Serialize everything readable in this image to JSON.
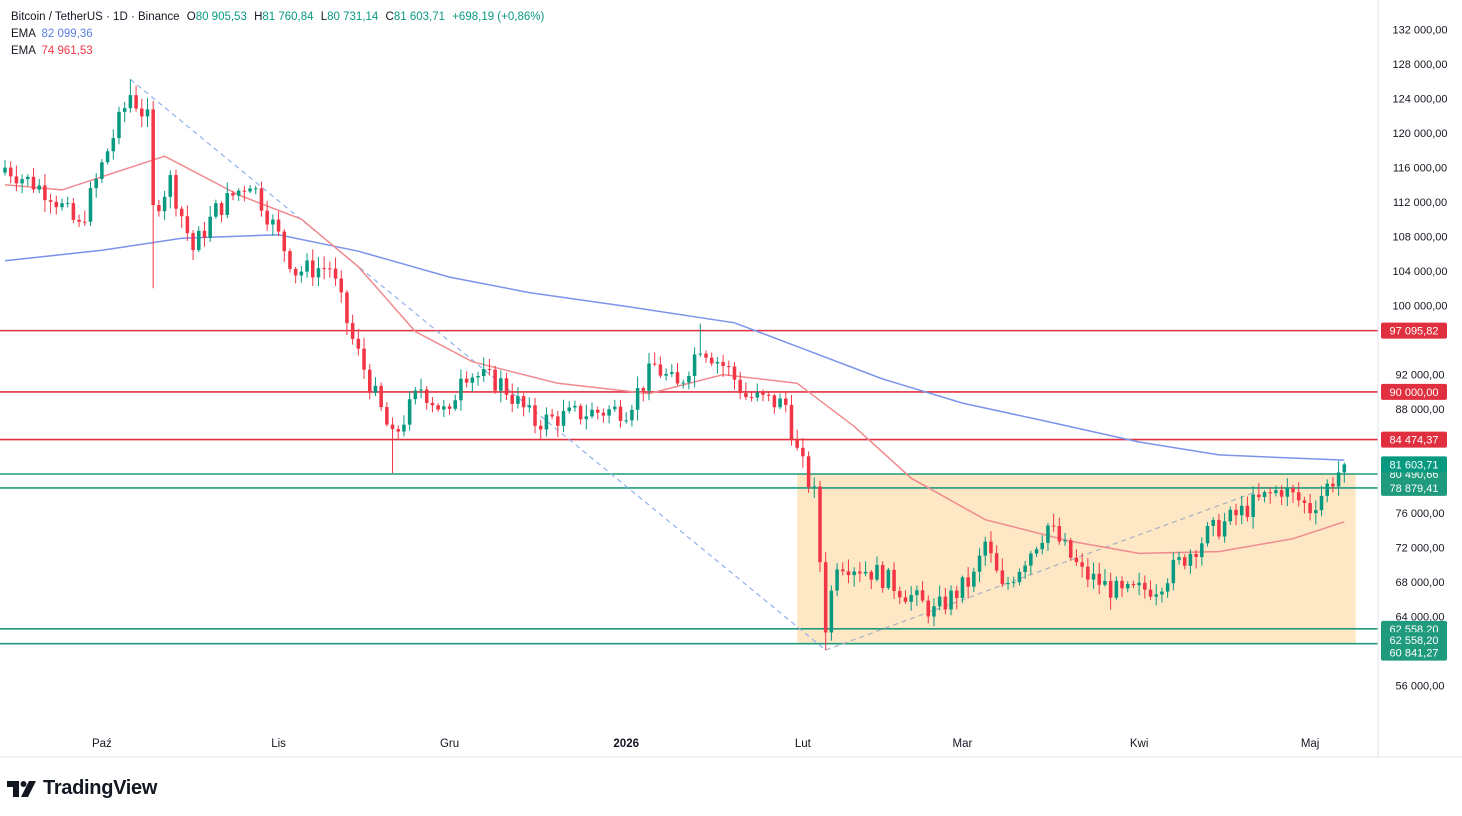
{
  "header": {
    "symbol": "Bitcoin / TetherUS · 1D · Binance",
    "ohlc": {
      "o_label": "O",
      "o": "80 905,53",
      "h_label": "H",
      "h": "81 760,84",
      "l_label": "L",
      "l": "80 731,14",
      "c_label": "C",
      "c": "81 603,71",
      "change": "+698,19 (+0,86%)"
    },
    "ema1": {
      "label": "EMA",
      "value": "82 099,36",
      "color": "#5b7ee5"
    },
    "ema2": {
      "label": "EMA",
      "value": "74 961,53",
      "color": "#f23645"
    }
  },
  "footer": {
    "brand": "TradingView",
    "logo_icon": "tradingview-logo-icon"
  },
  "colors": {
    "up": "#089981",
    "down": "#f23645",
    "ema_long": "#7b93ea",
    "ema_short": "#f08a8f",
    "resistance": "#e0303f",
    "support": "#1f9a7c",
    "zone": "#fde7c5"
  },
  "chart_data": {
    "type": "candlestick",
    "y_axis": {
      "min": 52000,
      "max": 134000,
      "ticks": [
        132000,
        128000,
        124000,
        120000,
        116000,
        112000,
        108000,
        104000,
        100000,
        92000,
        88000,
        76000,
        72000,
        68000,
        64000,
        56000
      ],
      "tick_labels": [
        "132 000,00",
        "128 000,00",
        "124 000,00",
        "120 000,00",
        "116 000,00",
        "112 000,00",
        "108 000,00",
        "104 000,00",
        "100 000,00",
        "92 000,00",
        "88 000,00",
        "76 000,00",
        "72 000,00",
        "68 000,00",
        "64 000,00",
        "56 000,00"
      ]
    },
    "x_axis": {
      "start": "2025-09-14",
      "end": "2026-05-08",
      "labels": [
        {
          "date": "2025-10-01",
          "text": "Paź",
          "bold": false
        },
        {
          "date": "2025-11-01",
          "text": "Lis",
          "bold": false
        },
        {
          "date": "2025-12-01",
          "text": "Gru",
          "bold": false
        },
        {
          "date": "2026-01-01",
          "text": "2026",
          "bold": true
        },
        {
          "date": "2026-02-01",
          "text": "Lut",
          "bold": false
        },
        {
          "date": "2026-03-01",
          "text": "Mar",
          "bold": false
        },
        {
          "date": "2026-04-01",
          "text": "Kwi",
          "bold": false
        },
        {
          "date": "2026-05-01",
          "text": "Maj",
          "bold": false
        }
      ]
    },
    "horizontal_levels": [
      {
        "value": 97095.82,
        "label": "97 095,82",
        "kind": "resistance"
      },
      {
        "value": 90000.0,
        "label": "90 000,00",
        "kind": "resistance"
      },
      {
        "value": 84474.37,
        "label": "84 474,37",
        "kind": "resistance"
      },
      {
        "value": 80490.66,
        "label": "80 490,66",
        "kind": "support"
      },
      {
        "value": 78879.41,
        "label": "78 879,41",
        "kind": "support"
      },
      {
        "value": 62558.2,
        "label": "62 558,20",
        "kind": "support"
      },
      {
        "value": 60841.27,
        "label": "60 841,27",
        "kind": "support"
      }
    ],
    "levels_extra_label": {
      "value": 62558.2,
      "label": "62 558,20"
    },
    "last_price": {
      "value": 81603.71,
      "label": "81 603,71"
    },
    "zone": {
      "start": "2026-01-31",
      "end": "2026-05-09",
      "top": 80490.66,
      "bottom": 60841.27
    },
    "trendlines": [
      {
        "from": {
          "date": "2025-10-06",
          "value": 126200
        },
        "to": {
          "date": "2026-02-05",
          "value": 60100
        }
      },
      {
        "from": {
          "date": "2026-02-05",
          "value": 60100
        },
        "to": {
          "date": "2026-04-21",
          "value": 78300
        }
      }
    ],
    "ema_long_series": [
      [
        "2025-09-14",
        105200
      ],
      [
        "2025-10-01",
        106400
      ],
      [
        "2025-10-15",
        107800
      ],
      [
        "2025-11-01",
        108200
      ],
      [
        "2025-11-15",
        106300
      ],
      [
        "2025-12-01",
        103300
      ],
      [
        "2025-12-15",
        101500
      ],
      [
        "2026-01-01",
        99900
      ],
      [
        "2026-01-20",
        98000
      ],
      [
        "2026-02-01",
        95000
      ],
      [
        "2026-02-15",
        91500
      ],
      [
        "2026-03-01",
        88700
      ],
      [
        "2026-03-15",
        86700
      ],
      [
        "2026-04-01",
        84200
      ],
      [
        "2026-04-15",
        82700
      ],
      [
        "2026-05-01",
        82250
      ],
      [
        "2026-05-07",
        82099
      ]
    ],
    "ema_short_series": [
      [
        "2025-09-14",
        114000
      ],
      [
        "2025-09-24",
        113400
      ],
      [
        "2025-10-06",
        116000
      ],
      [
        "2025-10-12",
        117300
      ],
      [
        "2025-10-25",
        112800
      ],
      [
        "2025-11-05",
        110000
      ],
      [
        "2025-11-15",
        104500
      ],
      [
        "2025-11-25",
        97000
      ],
      [
        "2025-12-05",
        93500
      ],
      [
        "2025-12-20",
        91000
      ],
      [
        "2026-01-05",
        89800
      ],
      [
        "2026-01-18",
        92000
      ],
      [
        "2026-01-31",
        91000
      ],
      [
        "2026-02-10",
        86000
      ],
      [
        "2026-02-20",
        80000
      ],
      [
        "2026-03-05",
        75200
      ],
      [
        "2026-03-20",
        72700
      ],
      [
        "2026-04-01",
        71300
      ],
      [
        "2026-04-15",
        71500
      ],
      [
        "2026-04-28",
        73000
      ],
      [
        "2026-05-07",
        74961
      ]
    ],
    "anchors": [
      [
        "2025-09-14",
        116000
      ],
      [
        "2025-09-22",
        113000
      ],
      [
        "2025-09-27",
        109000
      ],
      [
        "2025-10-02",
        118000
      ],
      [
        "2025-10-06",
        124500
      ],
      [
        "2025-10-09",
        121500
      ],
      [
        "2025-10-10",
        111000
      ],
      [
        "2025-10-13",
        114500
      ],
      [
        "2025-10-17",
        106500
      ],
      [
        "2025-10-21",
        111000
      ],
      [
        "2025-10-27",
        114500
      ],
      [
        "2025-10-29",
        112000
      ],
      [
        "2025-11-04",
        104000
      ],
      [
        "2025-11-10",
        104500
      ],
      [
        "2025-11-14",
        96000
      ],
      [
        "2025-11-21",
        84500
      ],
      [
        "2025-11-26",
        90500
      ],
      [
        "2025-12-01",
        87000
      ],
      [
        "2025-12-03",
        92500
      ],
      [
        "2025-12-10",
        91000
      ],
      [
        "2025-12-16",
        86500
      ],
      [
        "2025-12-24",
        87500
      ],
      [
        "2026-01-01",
        88000
      ],
      [
        "2026-01-06",
        93000
      ],
      [
        "2026-01-10",
        90500
      ],
      [
        "2026-01-14",
        95500
      ],
      [
        "2026-01-19",
        92500
      ],
      [
        "2026-01-22",
        89500
      ],
      [
        "2026-01-29",
        88500
      ],
      [
        "2026-01-31",
        83000
      ],
      [
        "2026-02-03",
        78000
      ],
      [
        "2026-02-05",
        63000
      ],
      [
        "2026-02-07",
        70500
      ],
      [
        "2026-02-14",
        69000
      ],
      [
        "2026-02-24",
        64500
      ],
      [
        "2026-03-03",
        68500
      ],
      [
        "2026-03-05",
        72500
      ],
      [
        "2026-03-08",
        67000
      ],
      [
        "2026-03-16",
        74500
      ],
      [
        "2026-03-22",
        69000
      ],
      [
        "2026-03-29",
        66500
      ],
      [
        "2026-04-04",
        67500
      ],
      [
        "2026-04-13",
        73500
      ],
      [
        "2026-04-21",
        77000
      ],
      [
        "2026-04-26",
        78800
      ],
      [
        "2026-05-01",
        76500
      ],
      [
        "2026-05-07",
        81603
      ]
    ],
    "wicks": [
      {
        "date": "2025-10-10",
        "low": 102000
      },
      {
        "date": "2025-11-21",
        "low": 80600
      },
      {
        "date": "2026-02-05",
        "low": 60100
      },
      {
        "date": "2025-10-06",
        "high": 126200
      },
      {
        "date": "2026-01-14",
        "high": 97900
      }
    ]
  }
}
